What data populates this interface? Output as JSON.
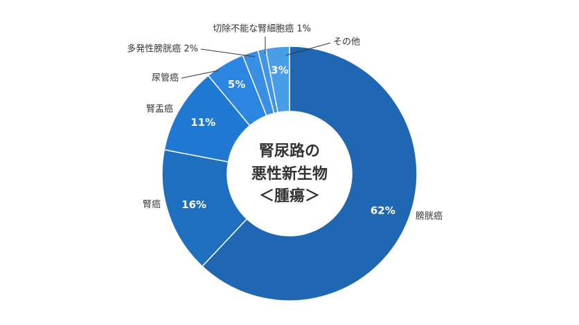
{
  "chart_data": {
    "type": "pie",
    "donut": true,
    "title_lines": [
      "腎尿路の",
      "悪性新生物",
      "＜腫瘍＞"
    ],
    "slices": [
      {
        "name": "膀胱癌",
        "value": 62,
        "label": "62%",
        "outer_label": "膀胱癌",
        "color": "#1f66b3"
      },
      {
        "name": "腎癌",
        "value": 16,
        "label": "16%",
        "outer_label": "腎癌",
        "color": "#1f6fc1"
      },
      {
        "name": "腎盂癌",
        "value": 11,
        "label": "11%",
        "outer_label": "腎盂癌",
        "color": "#1f78d1"
      },
      {
        "name": "尿管癌",
        "value": 5,
        "label": "5%",
        "outer_label": "尿管癌",
        "color": "#2a86e0"
      },
      {
        "name": "多発性膀胱癌",
        "value": 2,
        "label": "",
        "outer_label": "多発性膀胱癌 2%",
        "color": "#3a8fe2"
      },
      {
        "name": "切除不能な腎細胞癌",
        "value": 1,
        "label": "",
        "outer_label": "切除不能な腎細胞癌 1%",
        "color": "#3f95e6"
      },
      {
        "name": "その他",
        "value": 3,
        "label": "3%",
        "outer_label": "その他",
        "color": "#4a9ee8"
      }
    ]
  }
}
